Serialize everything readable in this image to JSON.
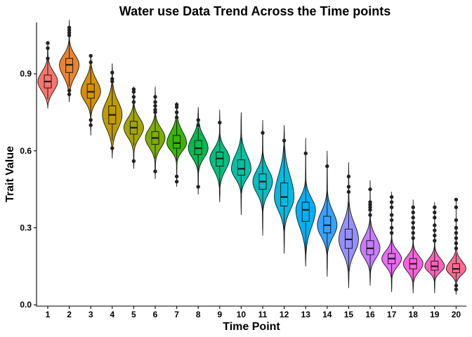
{
  "chart_data": {
    "type": "violin",
    "title": "Water use Data Trend Across the Time points",
    "xlabel": "Time Point",
    "ylabel": "Trait Value",
    "categories": [
      "1",
      "2",
      "3",
      "4",
      "5",
      "6",
      "7",
      "8",
      "9",
      "10",
      "11",
      "12",
      "13",
      "14",
      "15",
      "16",
      "17",
      "18",
      "19",
      "20"
    ],
    "yticks": [
      0.0,
      0.3,
      0.6,
      0.9
    ],
    "ytick_labels": [
      "0.0",
      "0.3",
      "0.6",
      "0.9"
    ],
    "ylim": [
      -0.005,
      1.1
    ],
    "grid": false,
    "legend": "none",
    "colors": [
      "#F8766D",
      "#EA8331",
      "#D89000",
      "#C09B00",
      "#A3A500",
      "#7CAE00",
      "#39B600",
      "#00BB4E",
      "#00BF7D",
      "#00C1A3",
      "#00BFC4",
      "#00BAE0",
      "#00B0F6",
      "#35A2FF",
      "#9590FF",
      "#C77CFF",
      "#E76BF3",
      "#FA62DB",
      "#FF62BC",
      "#FF6C91"
    ],
    "series": [
      {
        "category": "1",
        "median": 0.87,
        "q1": 0.845,
        "q3": 0.895,
        "whisker_low": 0.8,
        "whisker_high": 0.955,
        "min": 0.765,
        "max": 1.02,
        "outliers": [
          0.96,
          1.0,
          1.02
        ]
      },
      {
        "category": "2",
        "median": 0.935,
        "q1": 0.905,
        "q3": 0.96,
        "whisker_low": 0.85,
        "whisker_high": 1.04,
        "min": 0.79,
        "max": 1.11,
        "outliers": [
          0.82,
          0.835,
          1.05,
          1.06,
          1.07,
          1.08
        ]
      },
      {
        "category": "3",
        "median": 0.83,
        "q1": 0.805,
        "q3": 0.86,
        "whisker_low": 0.74,
        "whisker_high": 0.93,
        "min": 0.66,
        "max": 0.975,
        "outliers": [
          0.7,
          0.72,
          0.945,
          0.97
        ]
      },
      {
        "category": "4",
        "median": 0.74,
        "q1": 0.705,
        "q3": 0.775,
        "whisker_low": 0.64,
        "whisker_high": 0.86,
        "min": 0.57,
        "max": 0.94,
        "outliers": [
          0.61,
          0.87,
          0.88,
          0.905
        ]
      },
      {
        "category": "5",
        "median": 0.69,
        "q1": 0.665,
        "q3": 0.715,
        "whisker_low": 0.62,
        "whisker_high": 0.78,
        "min": 0.53,
        "max": 0.85,
        "outliers": [
          0.56,
          0.79,
          0.81,
          0.83,
          0.84
        ]
      },
      {
        "category": "6",
        "median": 0.65,
        "q1": 0.625,
        "q3": 0.675,
        "whisker_low": 0.57,
        "whisker_high": 0.74,
        "min": 0.49,
        "max": 0.85,
        "outliers": [
          0.52,
          0.75,
          0.76,
          0.775,
          0.79,
          0.81
        ]
      },
      {
        "category": "7",
        "median": 0.63,
        "q1": 0.61,
        "q3": 0.66,
        "whisker_low": 0.56,
        "whisker_high": 0.72,
        "min": 0.46,
        "max": 0.79,
        "outliers": [
          0.48,
          0.5,
          0.73,
          0.75,
          0.77,
          0.78
        ]
      },
      {
        "category": "8",
        "median": 0.61,
        "q1": 0.585,
        "q3": 0.64,
        "whisker_low": 0.51,
        "whisker_high": 0.69,
        "min": 0.43,
        "max": 0.77,
        "outliers": [
          0.46,
          0.7,
          0.72
        ]
      },
      {
        "category": "9",
        "median": 0.57,
        "q1": 0.54,
        "q3": 0.595,
        "whisker_low": 0.46,
        "whisker_high": 0.68,
        "min": 0.4,
        "max": 0.76,
        "outliers": [
          0.71
        ]
      },
      {
        "category": "10",
        "median": 0.53,
        "q1": 0.505,
        "q3": 0.565,
        "whisker_low": 0.43,
        "whisker_high": 0.65,
        "min": 0.35,
        "max": 0.75,
        "outliers": []
      },
      {
        "category": "11",
        "median": 0.48,
        "q1": 0.45,
        "q3": 0.51,
        "whisker_low": 0.35,
        "whisker_high": 0.62,
        "min": 0.27,
        "max": 0.72,
        "outliers": [
          0.67
        ]
      },
      {
        "category": "12",
        "median": 0.42,
        "q1": 0.385,
        "q3": 0.475,
        "whisker_low": 0.27,
        "whisker_high": 0.62,
        "min": 0.2,
        "max": 0.7,
        "outliers": [
          0.64
        ]
      },
      {
        "category": "13",
        "median": 0.37,
        "q1": 0.325,
        "q3": 0.4,
        "whisker_low": 0.2,
        "whisker_high": 0.52,
        "min": 0.15,
        "max": 0.65,
        "outliers": [
          0.59
        ]
      },
      {
        "category": "14",
        "median": 0.31,
        "q1": 0.28,
        "q3": 0.345,
        "whisker_low": 0.18,
        "whisker_high": 0.45,
        "min": 0.11,
        "max": 0.6,
        "outliers": [
          0.54
        ]
      },
      {
        "category": "15",
        "median": 0.255,
        "q1": 0.22,
        "q3": 0.295,
        "whisker_low": 0.13,
        "whisker_high": 0.4,
        "min": 0.065,
        "max": 0.555,
        "outliers": [
          0.44,
          0.46,
          0.5
        ]
      },
      {
        "category": "16",
        "median": 0.22,
        "q1": 0.195,
        "q3": 0.25,
        "whisker_low": 0.12,
        "whisker_high": 0.33,
        "min": 0.075,
        "max": 0.485,
        "outliers": [
          0.35,
          0.37,
          0.38,
          0.39,
          0.4,
          0.45
        ]
      },
      {
        "category": "17",
        "median": 0.18,
        "q1": 0.16,
        "q3": 0.2,
        "whisker_low": 0.1,
        "whisker_high": 0.26,
        "min": 0.05,
        "max": 0.44,
        "outliers": [
          0.28,
          0.3,
          0.33,
          0.35,
          0.38,
          0.4,
          0.42
        ]
      },
      {
        "category": "18",
        "median": 0.16,
        "q1": 0.14,
        "q3": 0.18,
        "whisker_low": 0.09,
        "whisker_high": 0.24,
        "min": 0.045,
        "max": 0.41,
        "outliers": [
          0.26,
          0.28,
          0.3,
          0.32,
          0.34,
          0.36,
          0.38
        ]
      },
      {
        "category": "19",
        "median": 0.15,
        "q1": 0.135,
        "q3": 0.17,
        "whisker_low": 0.09,
        "whisker_high": 0.23,
        "min": 0.045,
        "max": 0.4,
        "outliers": [
          0.25,
          0.27,
          0.29,
          0.31,
          0.34,
          0.36,
          0.38
        ]
      },
      {
        "category": "20",
        "median": 0.14,
        "q1": 0.125,
        "q3": 0.16,
        "whisker_low": 0.09,
        "whisker_high": 0.2,
        "min": 0.04,
        "max": 0.415,
        "outliers": [
          0.06,
          0.075,
          0.22,
          0.24,
          0.26,
          0.28,
          0.3,
          0.33,
          0.38,
          0.41
        ]
      }
    ]
  }
}
